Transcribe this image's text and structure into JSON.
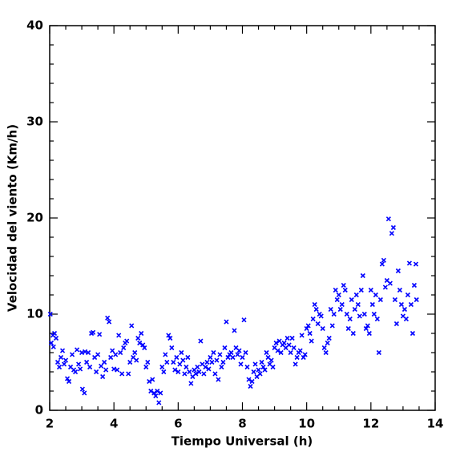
{
  "chart_data": {
    "type": "scatter",
    "xlabel": "Tiempo Universal (h)",
    "ylabel": "Velocidad del viento (Km/h)",
    "color": "#0000ff",
    "xlim": [
      2,
      14
    ],
    "xticks": [
      2,
      4,
      6,
      8,
      10,
      12,
      14
    ],
    "ylim": [
      0,
      40
    ],
    "yticks": [
      0,
      10,
      20,
      30,
      40
    ],
    "x": [
      2.02,
      2.05,
      2.1,
      2.12,
      2.15,
      2.2,
      2.25,
      2.3,
      2.35,
      2.4,
      2.45,
      2.5,
      2.55,
      2.6,
      2.65,
      2.7,
      2.75,
      2.8,
      2.85,
      2.9,
      2.95,
      3.0,
      3.02,
      3.08,
      3.1,
      3.15,
      3.2,
      3.25,
      3.3,
      3.35,
      3.4,
      3.45,
      3.5,
      3.55,
      3.6,
      3.65,
      3.7,
      3.75,
      3.8,
      3.85,
      3.9,
      3.95,
      4.0,
      4.05,
      4.1,
      4.15,
      4.2,
      4.25,
      4.3,
      4.35,
      4.4,
      4.45,
      4.5,
      4.55,
      4.6,
      4.65,
      4.7,
      4.75,
      4.8,
      4.85,
      4.9,
      4.95,
      5.0,
      5.05,
      5.1,
      5.15,
      5.2,
      5.25,
      5.3,
      5.35,
      5.4,
      5.45,
      5.5,
      5.55,
      5.6,
      5.65,
      5.7,
      5.75,
      5.8,
      5.85,
      5.9,
      5.95,
      6.0,
      6.05,
      6.1,
      6.15,
      6.2,
      6.25,
      6.3,
      6.35,
      6.4,
      6.45,
      6.5,
      6.55,
      6.6,
      6.65,
      6.7,
      6.75,
      6.8,
      6.85,
      6.9,
      6.95,
      7.0,
      7.05,
      7.1,
      7.15,
      7.2,
      7.25,
      7.3,
      7.35,
      7.4,
      7.45,
      7.5,
      7.55,
      7.6,
      7.65,
      7.7,
      7.75,
      7.8,
      7.85,
      7.9,
      7.95,
      8.0,
      8.05,
      8.1,
      8.15,
      8.2,
      8.25,
      8.3,
      8.35,
      8.4,
      8.45,
      8.5,
      8.55,
      8.6,
      8.65,
      8.7,
      8.75,
      8.8,
      8.85,
      8.9,
      8.95,
      9.0,
      9.05,
      9.1,
      9.15,
      9.2,
      9.25,
      9.3,
      9.35,
      9.4,
      9.45,
      9.5,
      9.55,
      9.6,
      9.65,
      9.7,
      9.75,
      9.8,
      9.85,
      9.9,
      9.95,
      10.0,
      10.05,
      10.1,
      10.15,
      10.2,
      10.25,
      10.3,
      10.35,
      10.4,
      10.45,
      10.5,
      10.55,
      10.6,
      10.65,
      10.7,
      10.75,
      10.8,
      10.85,
      10.9,
      10.95,
      11.0,
      11.05,
      11.1,
      11.15,
      11.2,
      11.25,
      11.3,
      11.35,
      11.4,
      11.45,
      11.5,
      11.55,
      11.6,
      11.65,
      11.7,
      11.75,
      11.8,
      11.85,
      11.9,
      11.95,
      12.0,
      12.05,
      12.1,
      12.15,
      12.2,
      12.25,
      12.3,
      12.35,
      12.4,
      12.45,
      12.5,
      12.55,
      12.6,
      12.65,
      12.7,
      12.75,
      12.8,
      12.85,
      12.9,
      12.95,
      13.0,
      13.05,
      13.1,
      13.15,
      13.2,
      13.25,
      13.3,
      13.35,
      13.4,
      13.42
    ],
    "values": [
      10.0,
      7.0,
      7.8,
      6.6,
      8.0,
      7.5,
      5.0,
      4.5,
      5.5,
      6.2,
      4.8,
      5.2,
      3.3,
      3.0,
      4.5,
      5.8,
      4.2,
      4.0,
      6.3,
      4.8,
      4.3,
      6.0,
      2.2,
      1.8,
      6.1,
      5.0,
      6.0,
      4.5,
      8.0,
      8.1,
      5.5,
      4.0,
      5.8,
      7.9,
      4.6,
      3.5,
      5.0,
      4.2,
      9.6,
      9.2,
      5.5,
      6.2,
      4.3,
      5.8,
      4.2,
      7.8,
      6.0,
      3.8,
      6.5,
      7.0,
      7.2,
      3.8,
      5.0,
      8.8,
      5.5,
      6.0,
      5.2,
      7.5,
      7.0,
      8.0,
      6.8,
      6.5,
      4.5,
      5.0,
      3.0,
      2.0,
      3.2,
      1.8,
      1.5,
      2.0,
      0.8,
      1.8,
      4.5,
      4.0,
      5.8,
      5.0,
      7.8,
      7.5,
      6.5,
      5.0,
      4.2,
      5.5,
      4.0,
      4.8,
      6.0,
      5.2,
      3.8,
      4.5,
      5.5,
      4.0,
      2.8,
      3.5,
      4.2,
      3.8,
      4.5,
      4.0,
      7.2,
      4.8,
      3.8,
      4.5,
      5.0,
      4.3,
      5.5,
      5.0,
      6.0,
      3.8,
      5.2,
      3.2,
      5.8,
      4.5,
      5.0,
      6.5,
      9.2,
      5.5,
      5.8,
      6.0,
      5.5,
      8.3,
      6.5,
      5.8,
      6.2,
      4.8,
      5.5,
      9.4,
      6.0,
      4.5,
      3.2,
      2.5,
      3.0,
      4.0,
      4.8,
      3.5,
      4.2,
      3.8,
      5.0,
      4.5,
      4.2,
      6.0,
      5.5,
      4.8,
      5.2,
      4.5,
      6.5,
      7.0,
      6.2,
      7.2,
      6.0,
      6.8,
      7.0,
      6.5,
      7.5,
      6.8,
      6.0,
      7.5,
      6.5,
      4.8,
      5.5,
      6.0,
      6.2,
      7.8,
      5.5,
      5.8,
      8.5,
      8.8,
      8.0,
      7.2,
      9.5,
      11.0,
      10.5,
      9.0,
      10.0,
      9.8,
      8.5,
      6.5,
      6.0,
      7.0,
      7.5,
      10.5,
      8.8,
      10.0,
      12.5,
      11.5,
      12.0,
      10.5,
      11.0,
      13.0,
      12.5,
      10.0,
      8.5,
      9.5,
      11.5,
      8.0,
      10.5,
      12.0,
      11.0,
      9.8,
      12.5,
      14.0,
      10.0,
      8.5,
      8.8,
      8.0,
      12.5,
      11.0,
      10.0,
      12.0,
      9.5,
      6.0,
      11.5,
      15.2,
      15.6,
      12.8,
      13.5,
      19.9,
      13.2,
      18.4,
      19.0,
      11.5,
      9.0,
      14.5,
      12.5,
      11.0,
      9.8,
      10.5,
      9.5,
      12.0,
      15.3,
      11.0,
      8.0,
      13.0,
      15.2,
      11.5
    ]
  }
}
